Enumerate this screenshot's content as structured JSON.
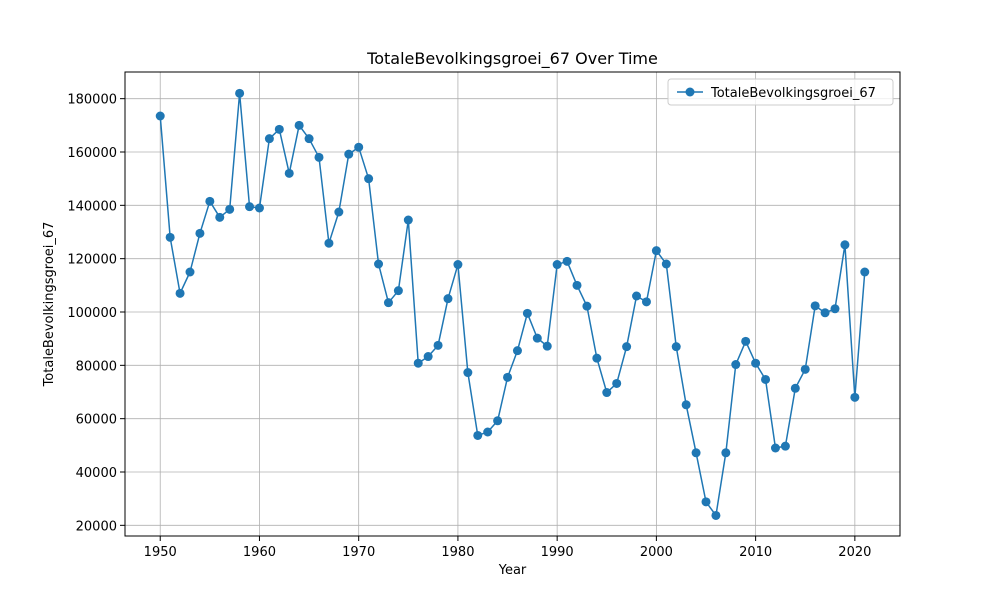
{
  "chart_data": {
    "type": "line",
    "title": "TotaleBevolkingsgroei_67 Over Time",
    "xlabel": "Year",
    "ylabel": "TotaleBevolkingsgroei_67",
    "xlim": [
      1946.45,
      2024.55
    ],
    "ylim": [
      16000,
      190000
    ],
    "xticks": [
      1950,
      1960,
      1970,
      1980,
      1990,
      2000,
      2010,
      2020
    ],
    "yticks": [
      20000,
      40000,
      60000,
      80000,
      100000,
      120000,
      140000,
      160000,
      180000
    ],
    "grid": true,
    "legend_position": "top-right",
    "colors": {
      "series": "#1f77b4",
      "grid": "#b0b0b0"
    },
    "x": [
      1950,
      1951,
      1952,
      1953,
      1954,
      1955,
      1956,
      1957,
      1958,
      1959,
      1960,
      1961,
      1962,
      1963,
      1964,
      1965,
      1966,
      1967,
      1968,
      1969,
      1970,
      1971,
      1972,
      1973,
      1974,
      1975,
      1976,
      1977,
      1978,
      1979,
      1980,
      1981,
      1982,
      1983,
      1984,
      1985,
      1986,
      1987,
      1988,
      1989,
      1990,
      1991,
      1992,
      1993,
      1994,
      1995,
      1996,
      1997,
      1998,
      1999,
      2000,
      2001,
      2002,
      2003,
      2004,
      2005,
      2006,
      2007,
      2008,
      2009,
      2010,
      2011,
      2012,
      2013,
      2014,
      2015,
      2016,
      2017,
      2018,
      2019,
      2020,
      2021
    ],
    "series": [
      {
        "name": "TotaleBevolkingsgroei_67",
        "values": [
          173500,
          128000,
          107000,
          115000,
          129500,
          141500,
          135500,
          138500,
          182000,
          139500,
          139000,
          165000,
          168500,
          152000,
          170000,
          165000,
          158000,
          125800,
          137500,
          159200,
          161800,
          150000,
          118000,
          103500,
          108000,
          134500,
          80800,
          83300,
          87500,
          105000,
          117800,
          77300,
          53700,
          55000,
          59200,
          75500,
          85500,
          99500,
          90200,
          87200,
          117800,
          119000,
          110000,
          102200,
          82700,
          69800,
          73200,
          87000,
          106000,
          103800,
          123000,
          118000,
          87000,
          65200,
          47200,
          28800,
          23700,
          47200,
          80300,
          89000,
          80800,
          74700,
          49000,
          49700,
          71400,
          78500,
          102300,
          99700,
          101200,
          125200,
          68000,
          115000
        ]
      }
    ]
  }
}
